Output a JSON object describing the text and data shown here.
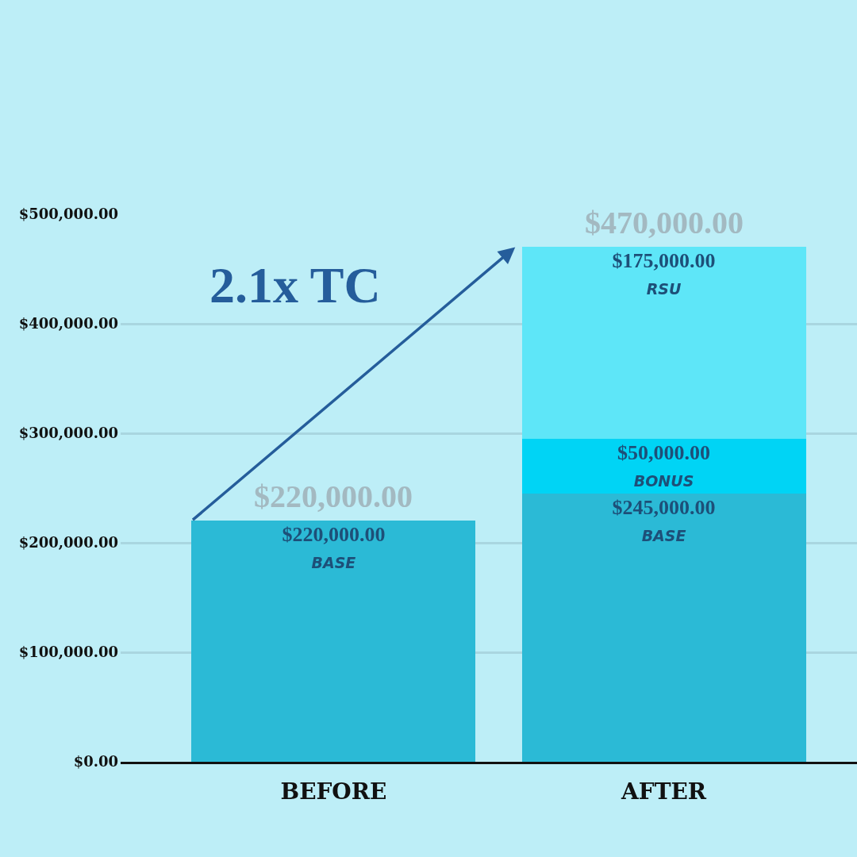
{
  "chart_data": {
    "type": "bar",
    "stacked": true,
    "categories": [
      "BEFORE",
      "AFTER"
    ],
    "series": [
      {
        "name": "BASE",
        "color": "#2bbad6",
        "values": [
          220000,
          245000
        ],
        "value_labels": [
          "$220,000.00",
          "$245,000.00"
        ]
      },
      {
        "name": "BONUS",
        "color": "#00d4f5",
        "values": [
          null,
          50000
        ],
        "value_labels": [
          null,
          "$50,000.00"
        ]
      },
      {
        "name": "RSU",
        "color": "#5ee6f8",
        "values": [
          null,
          175000
        ],
        "value_labels": [
          null,
          "$175,000.00"
        ]
      }
    ],
    "totals": [
      "$220,000.00",
      "$470,000.00"
    ],
    "ylim": [
      0,
      500000
    ],
    "yticks": [
      {
        "value": 0,
        "label": "$0.00"
      },
      {
        "value": 100000,
        "label": "$100,000.00"
      },
      {
        "value": 200000,
        "label": "$200,000.00"
      },
      {
        "value": 300000,
        "label": "$300,000.00"
      },
      {
        "value": 400000,
        "label": "$400,000.00"
      },
      {
        "value": 500000,
        "label": "$500,000.00"
      }
    ],
    "grid": "y",
    "annotations": [
      "2.1x TC"
    ]
  }
}
